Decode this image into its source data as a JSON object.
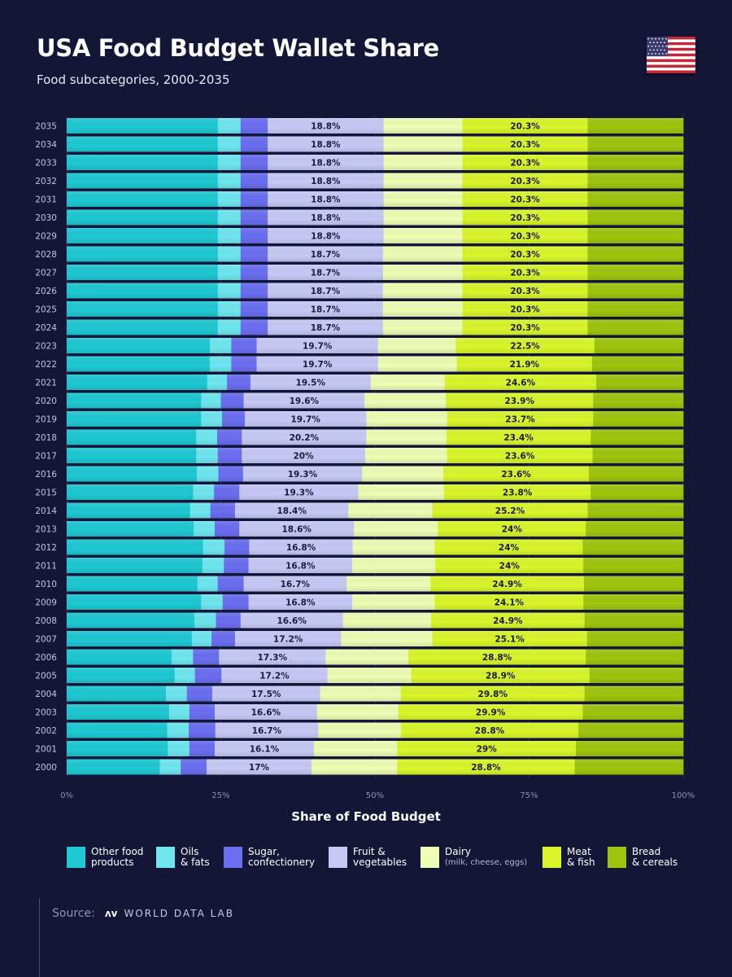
{
  "header": {
    "title": "USA Food Budget Wallet Share",
    "subtitle": "Food subcategories, 2000-2035"
  },
  "chart_data": {
    "type": "bar",
    "orientation": "horizontal-stacked-100",
    "x_axis_title": "Share of Food Budget",
    "x_ticks": [
      "0%",
      "25%",
      "50%",
      "75%",
      "100%"
    ],
    "xlim": [
      0,
      100
    ],
    "series": [
      {
        "name": "Other food products",
        "color": "#1ec8d2"
      },
      {
        "name": "Oils & fats",
        "color": "#6fe6ef"
      },
      {
        "name": "Sugar, confectionery",
        "color": "#6a6ef0"
      },
      {
        "name": "Fruit & vegetables",
        "color": "#c7c8f5"
      },
      {
        "name": "Dairy (milk, cheese, eggs)",
        "color": "#eefcb4"
      },
      {
        "name": "Meat & fish",
        "color": "#d9f52a"
      },
      {
        "name": "Bread & cereals",
        "color": "#9fc40e"
      }
    ],
    "rows": [
      {
        "year": "2035",
        "values": [
          24.5,
          3.7,
          4.4,
          18.8,
          12.8,
          20.3,
          15.5
        ],
        "labels": [
          "18.8%",
          "20.3%"
        ]
      },
      {
        "year": "2034",
        "values": [
          24.5,
          3.7,
          4.4,
          18.8,
          12.8,
          20.3,
          15.5
        ],
        "labels": [
          "18.8%",
          "20.3%"
        ]
      },
      {
        "year": "2033",
        "values": [
          24.5,
          3.7,
          4.4,
          18.8,
          12.8,
          20.3,
          15.5
        ],
        "labels": [
          "18.8%",
          "20.3%"
        ]
      },
      {
        "year": "2032",
        "values": [
          24.5,
          3.7,
          4.4,
          18.8,
          12.8,
          20.3,
          15.5
        ],
        "labels": [
          "18.8%",
          "20.3%"
        ]
      },
      {
        "year": "2031",
        "values": [
          24.5,
          3.7,
          4.4,
          18.8,
          12.8,
          20.3,
          15.5
        ],
        "labels": [
          "18.8%",
          "20.3%"
        ]
      },
      {
        "year": "2030",
        "values": [
          24.5,
          3.7,
          4.4,
          18.8,
          12.8,
          20.3,
          15.5
        ],
        "labels": [
          "18.8%",
          "20.3%"
        ]
      },
      {
        "year": "2029",
        "values": [
          24.5,
          3.7,
          4.4,
          18.8,
          12.8,
          20.3,
          15.5
        ],
        "labels": [
          "18.8%",
          "20.3%"
        ]
      },
      {
        "year": "2028",
        "values": [
          24.5,
          3.7,
          4.4,
          18.7,
          12.9,
          20.3,
          15.5
        ],
        "labels": [
          "18.7%",
          "20.3%"
        ]
      },
      {
        "year": "2027",
        "values": [
          24.5,
          3.7,
          4.4,
          18.7,
          12.9,
          20.3,
          15.5
        ],
        "labels": [
          "18.7%",
          "20.3%"
        ]
      },
      {
        "year": "2026",
        "values": [
          24.5,
          3.7,
          4.4,
          18.7,
          12.9,
          20.3,
          15.5
        ],
        "labels": [
          "18.7%",
          "20.3%"
        ]
      },
      {
        "year": "2025",
        "values": [
          24.5,
          3.7,
          4.4,
          18.7,
          12.9,
          20.3,
          15.5
        ],
        "labels": [
          "18.7%",
          "20.3%"
        ]
      },
      {
        "year": "2024",
        "values": [
          24.5,
          3.7,
          4.4,
          18.7,
          12.9,
          20.3,
          15.5
        ],
        "labels": [
          "18.7%",
          "20.3%"
        ]
      },
      {
        "year": "2023",
        "values": [
          23.2,
          3.5,
          4.1,
          19.7,
          12.6,
          22.5,
          14.4
        ],
        "labels": [
          "19.7%",
          "22.5%"
        ]
      },
      {
        "year": "2022",
        "values": [
          23.2,
          3.5,
          4.1,
          19.7,
          12.8,
          21.9,
          14.8
        ],
        "labels": [
          "19.7%",
          "21.9%"
        ]
      },
      {
        "year": "2021",
        "values": [
          22.8,
          3.2,
          3.8,
          19.5,
          12.0,
          24.6,
          14.1
        ],
        "labels": [
          "19.5%",
          "24.6%"
        ]
      },
      {
        "year": "2020",
        "values": [
          21.8,
          3.2,
          3.7,
          19.6,
          13.2,
          23.9,
          14.6
        ],
        "labels": [
          "19.6%",
          "23.9%"
        ]
      },
      {
        "year": "2019",
        "values": [
          21.8,
          3.4,
          3.7,
          19.7,
          13.1,
          23.7,
          14.6
        ],
        "labels": [
          "19.7%",
          "23.7%"
        ]
      },
      {
        "year": "2018",
        "values": [
          21.0,
          3.4,
          4.0,
          20.2,
          13.0,
          23.4,
          15.0
        ],
        "labels": [
          "20.2%",
          "23.4%"
        ]
      },
      {
        "year": "2017",
        "values": [
          21.0,
          3.5,
          3.9,
          20.0,
          13.3,
          23.6,
          14.7
        ],
        "labels": [
          "20%",
          "23.6%"
        ]
      },
      {
        "year": "2016",
        "values": [
          21.1,
          3.5,
          4.0,
          19.3,
          13.2,
          23.6,
          15.3
        ],
        "labels": [
          "19.3%",
          "23.6%"
        ]
      },
      {
        "year": "2015",
        "values": [
          20.5,
          3.4,
          4.1,
          19.3,
          13.9,
          23.8,
          15.0
        ],
        "labels": [
          "19.3%",
          "23.8%"
        ]
      },
      {
        "year": "2014",
        "values": [
          20.0,
          3.3,
          4.0,
          18.4,
          13.6,
          25.2,
          15.5
        ],
        "labels": [
          "18.4%",
          "25.2%"
        ]
      },
      {
        "year": "2013",
        "values": [
          20.6,
          3.4,
          4.0,
          18.6,
          13.6,
          24.0,
          15.8
        ],
        "labels": [
          "18.6%",
          "24%"
        ]
      },
      {
        "year": "2012",
        "values": [
          22.1,
          3.5,
          4.0,
          16.8,
          13.3,
          24.0,
          16.3
        ],
        "labels": [
          "16.8%",
          "24%"
        ]
      },
      {
        "year": "2011",
        "values": [
          22.0,
          3.5,
          4.0,
          16.8,
          13.5,
          24.0,
          16.2
        ],
        "labels": [
          "16.8%",
          "24%"
        ]
      },
      {
        "year": "2010",
        "values": [
          21.2,
          3.3,
          4.2,
          16.7,
          13.6,
          24.9,
          16.1
        ],
        "labels": [
          "16.7%",
          "24.9%"
        ]
      },
      {
        "year": "2009",
        "values": [
          21.8,
          3.5,
          4.2,
          16.8,
          13.4,
          24.1,
          16.2
        ],
        "labels": [
          "16.8%",
          "24.1%"
        ]
      },
      {
        "year": "2008",
        "values": [
          20.7,
          3.5,
          4.0,
          16.6,
          14.3,
          24.9,
          16.0
        ],
        "labels": [
          "16.6%",
          "24.9%"
        ]
      },
      {
        "year": "2007",
        "values": [
          20.3,
          3.2,
          3.8,
          17.2,
          14.8,
          25.1,
          15.6
        ],
        "labels": [
          "17.2%",
          "25.1%"
        ]
      },
      {
        "year": "2006",
        "values": [
          17.0,
          3.5,
          4.2,
          17.3,
          13.4,
          28.8,
          15.8
        ],
        "labels": [
          "17.3%",
          "28.8%"
        ]
      },
      {
        "year": "2005",
        "values": [
          17.5,
          3.3,
          4.3,
          17.2,
          13.6,
          28.9,
          15.2
        ],
        "labels": [
          "17.2%",
          "28.9%"
        ]
      },
      {
        "year": "2004",
        "values": [
          16.1,
          3.4,
          4.1,
          17.5,
          13.1,
          29.8,
          16.0
        ],
        "labels": [
          "17.5%",
          "29.8%"
        ]
      },
      {
        "year": "2003",
        "values": [
          16.6,
          3.3,
          4.1,
          16.6,
          13.2,
          29.9,
          16.3
        ],
        "labels": [
          "16.6%",
          "29.9%"
        ]
      },
      {
        "year": "2002",
        "values": [
          16.3,
          3.5,
          4.3,
          16.7,
          13.4,
          28.8,
          17.0
        ],
        "labels": [
          "16.7%",
          "28.8%"
        ]
      },
      {
        "year": "2001",
        "values": [
          16.4,
          3.5,
          4.1,
          16.1,
          13.5,
          29.0,
          17.4
        ],
        "labels": [
          "16.1%",
          "29%"
        ]
      },
      {
        "year": "2000",
        "values": [
          15.1,
          3.4,
          4.2,
          17.0,
          13.9,
          28.8,
          17.6
        ],
        "labels": [
          "17%",
          "28.8%"
        ]
      }
    ]
  },
  "legend": [
    {
      "line1": "Other food",
      "line2": "products",
      "sub": ""
    },
    {
      "line1": "Oils",
      "line2": "& fats",
      "sub": ""
    },
    {
      "line1": "Sugar,",
      "line2": "confectionery",
      "sub": ""
    },
    {
      "line1": "Fruit &",
      "line2": "vegetables",
      "sub": ""
    },
    {
      "line1": "Dairy",
      "line2": "",
      "sub": "(milk, cheese, eggs)"
    },
    {
      "line1": "Meat",
      "line2": "& fish",
      "sub": ""
    },
    {
      "line1": "Bread",
      "line2": "& cereals",
      "sub": ""
    }
  ],
  "footer": {
    "source_label": "Source:",
    "source_name": "WORLD DATA LAB",
    "logo_mark": "ʌv"
  },
  "colors": {
    "background": "#141638",
    "flag_red": "#c4263a",
    "flag_blue": "#3b3a6e"
  }
}
